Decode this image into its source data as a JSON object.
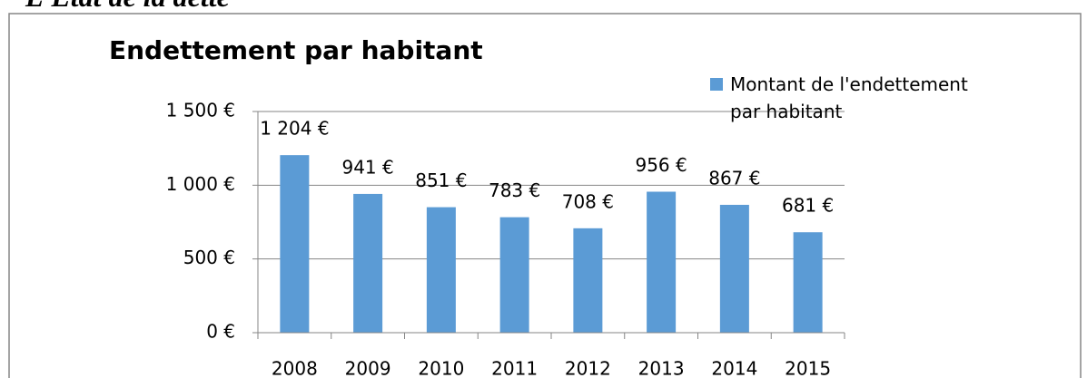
{
  "header": {
    "title": "L'Etat de la dette"
  },
  "chart_data": {
    "type": "bar",
    "title": "Endettement par habitant",
    "categories": [
      "2008",
      "2009",
      "2010",
      "2011",
      "2012",
      "2013",
      "2014",
      "2015"
    ],
    "series": [
      {
        "name": "Montant de l'endettement par habitant",
        "color": "#5b9bd5",
        "values": [
          1204,
          941,
          851,
          783,
          708,
          956,
          867,
          681
        ],
        "value_labels": [
          "1 204 €",
          "941 €",
          "851 €",
          "783 €",
          "708 €",
          "956 €",
          "867 €",
          "681 €"
        ]
      }
    ],
    "ylim": [
      0,
      1500
    ],
    "yticks": [
      {
        "value": 0,
        "label": "0 €"
      },
      {
        "value": 500,
        "label": "500 €"
      },
      {
        "value": 1000,
        "label": "1 000 €"
      },
      {
        "value": 1500,
        "label": "1 500 €"
      }
    ],
    "grid": true,
    "legend": "top-right"
  }
}
